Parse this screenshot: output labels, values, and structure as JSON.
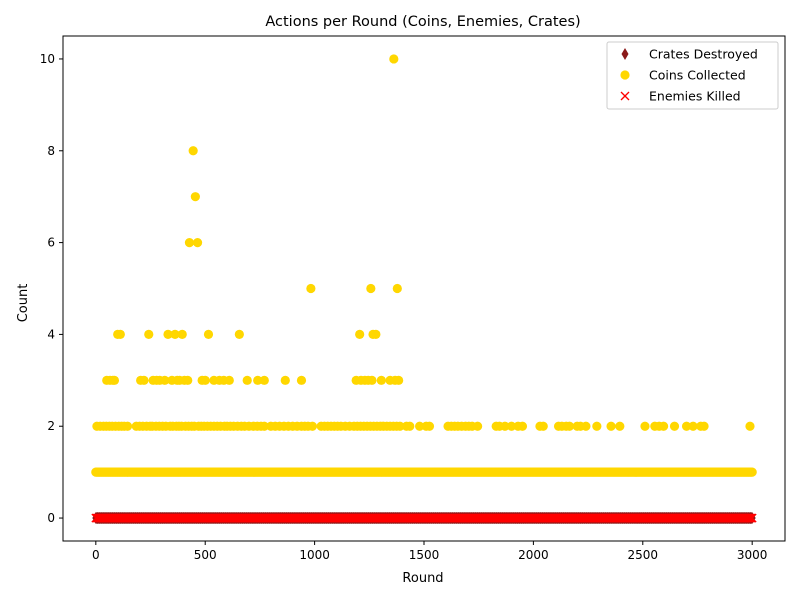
{
  "chart_data": {
    "type": "scatter",
    "title": "Actions per Round (Coins, Enemies, Crates)",
    "xlabel": "Round",
    "ylabel": "Count",
    "xlim": [
      -150,
      3150
    ],
    "ylim": [
      -0.5,
      10.5
    ],
    "xticks": [
      0,
      500,
      1000,
      1500,
      2000,
      2500,
      3000
    ],
    "yticks": [
      0,
      2,
      4,
      6,
      8,
      10
    ],
    "grid": false,
    "legend_position": "top-right",
    "colors": {
      "crates": "#8b1a1a",
      "coins": "#ffd700",
      "enemies": "#ff0000"
    },
    "series": [
      {
        "name": "Crates Destroyed",
        "marker": "thin_diamond",
        "color": "#8b1a1a",
        "constant_y": 0,
        "x_range": [
          0,
          3000
        ],
        "points": []
      },
      {
        "name": "Coins Collected",
        "marker": "circle",
        "color": "#ffd700",
        "baseline_y": 1,
        "baseline_x_range": [
          0,
          3000
        ],
        "points": [
          [
            445,
            8
          ],
          [
            1362,
            10
          ],
          [
            455,
            7
          ],
          [
            428,
            6
          ],
          [
            465,
            6
          ],
          [
            983,
            5
          ],
          [
            1257,
            5
          ],
          [
            1378,
            5
          ],
          [
            100,
            4
          ],
          [
            112,
            4
          ],
          [
            242,
            4
          ],
          [
            330,
            4
          ],
          [
            362,
            4
          ],
          [
            395,
            4
          ],
          [
            515,
            4
          ],
          [
            656,
            4
          ],
          [
            1206,
            4
          ],
          [
            1267,
            4
          ],
          [
            1280,
            4
          ],
          [
            50,
            3
          ],
          [
            65,
            3
          ],
          [
            78,
            3
          ],
          [
            85,
            3
          ],
          [
            205,
            3
          ],
          [
            220,
            3
          ],
          [
            262,
            3
          ],
          [
            278,
            3
          ],
          [
            292,
            3
          ],
          [
            315,
            3
          ],
          [
            348,
            3
          ],
          [
            372,
            3
          ],
          [
            383,
            3
          ],
          [
            405,
            3
          ],
          [
            420,
            3
          ],
          [
            486,
            3
          ],
          [
            500,
            3
          ],
          [
            540,
            3
          ],
          [
            565,
            3
          ],
          [
            585,
            3
          ],
          [
            610,
            3
          ],
          [
            692,
            3
          ],
          [
            740,
            3
          ],
          [
            770,
            3
          ],
          [
            866,
            3
          ],
          [
            940,
            3
          ],
          [
            1190,
            3
          ],
          [
            1212,
            3
          ],
          [
            1230,
            3
          ],
          [
            1245,
            3
          ],
          [
            1262,
            3
          ],
          [
            1305,
            3
          ],
          [
            1345,
            3
          ],
          [
            1368,
            3
          ],
          [
            1384,
            3
          ],
          [
            5,
            2
          ],
          [
            20,
            2
          ],
          [
            35,
            2
          ],
          [
            48,
            2
          ],
          [
            62,
            2
          ],
          [
            75,
            2
          ],
          [
            90,
            2
          ],
          [
            105,
            2
          ],
          [
            118,
            2
          ],
          [
            130,
            2
          ],
          [
            145,
            2
          ],
          [
            185,
            2
          ],
          [
            200,
            2
          ],
          [
            215,
            2
          ],
          [
            232,
            2
          ],
          [
            248,
            2
          ],
          [
            258,
            2
          ],
          [
            275,
            2
          ],
          [
            290,
            2
          ],
          [
            305,
            2
          ],
          [
            320,
            2
          ],
          [
            340,
            2
          ],
          [
            352,
            2
          ],
          [
            368,
            2
          ],
          [
            380,
            2
          ],
          [
            392,
            2
          ],
          [
            410,
            2
          ],
          [
            424,
            2
          ],
          [
            438,
            2
          ],
          [
            450,
            2
          ],
          [
            470,
            2
          ],
          [
            482,
            2
          ],
          [
            495,
            2
          ],
          [
            510,
            2
          ],
          [
            525,
            2
          ],
          [
            540,
            2
          ],
          [
            555,
            2
          ],
          [
            570,
            2
          ],
          [
            588,
            2
          ],
          [
            600,
            2
          ],
          [
            615,
            2
          ],
          [
            630,
            2
          ],
          [
            648,
            2
          ],
          [
            665,
            2
          ],
          [
            680,
            2
          ],
          [
            700,
            2
          ],
          [
            720,
            2
          ],
          [
            738,
            2
          ],
          [
            755,
            2
          ],
          [
            770,
            2
          ],
          [
            800,
            2
          ],
          [
            820,
            2
          ],
          [
            840,
            2
          ],
          [
            860,
            2
          ],
          [
            880,
            2
          ],
          [
            900,
            2
          ],
          [
            920,
            2
          ],
          [
            940,
            2
          ],
          [
            955,
            2
          ],
          [
            970,
            2
          ],
          [
            990,
            2
          ],
          [
            1030,
            2
          ],
          [
            1045,
            2
          ],
          [
            1060,
            2
          ],
          [
            1075,
            2
          ],
          [
            1090,
            2
          ],
          [
            1105,
            2
          ],
          [
            1120,
            2
          ],
          [
            1140,
            2
          ],
          [
            1160,
            2
          ],
          [
            1180,
            2
          ],
          [
            1195,
            2
          ],
          [
            1210,
            2
          ],
          [
            1225,
            2
          ],
          [
            1240,
            2
          ],
          [
            1255,
            2
          ],
          [
            1270,
            2
          ],
          [
            1285,
            2
          ],
          [
            1300,
            2
          ],
          [
            1315,
            2
          ],
          [
            1330,
            2
          ],
          [
            1345,
            2
          ],
          [
            1360,
            2
          ],
          [
            1375,
            2
          ],
          [
            1390,
            2
          ],
          [
            1420,
            2
          ],
          [
            1435,
            2
          ],
          [
            1480,
            2
          ],
          [
            1510,
            2
          ],
          [
            1525,
            2
          ],
          [
            1610,
            2
          ],
          [
            1625,
            2
          ],
          [
            1640,
            2
          ],
          [
            1655,
            2
          ],
          [
            1672,
            2
          ],
          [
            1690,
            2
          ],
          [
            1705,
            2
          ],
          [
            1720,
            2
          ],
          [
            1745,
            2
          ],
          [
            1830,
            2
          ],
          [
            1845,
            2
          ],
          [
            1870,
            2
          ],
          [
            1900,
            2
          ],
          [
            1930,
            2
          ],
          [
            1950,
            2
          ],
          [
            2030,
            2
          ],
          [
            2045,
            2
          ],
          [
            2115,
            2
          ],
          [
            2130,
            2
          ],
          [
            2150,
            2
          ],
          [
            2165,
            2
          ],
          [
            2200,
            2
          ],
          [
            2215,
            2
          ],
          [
            2240,
            2
          ],
          [
            2290,
            2
          ],
          [
            2355,
            2
          ],
          [
            2395,
            2
          ],
          [
            2510,
            2
          ],
          [
            2555,
            2
          ],
          [
            2575,
            2
          ],
          [
            2595,
            2
          ],
          [
            2645,
            2
          ],
          [
            2700,
            2
          ],
          [
            2730,
            2
          ],
          [
            2765,
            2
          ],
          [
            2780,
            2
          ],
          [
            2990,
            2
          ]
        ]
      },
      {
        "name": "Enemies Killed",
        "marker": "x",
        "color": "#ff0000",
        "constant_y": 0,
        "x_range": [
          0,
          3000
        ],
        "points": []
      }
    ]
  }
}
